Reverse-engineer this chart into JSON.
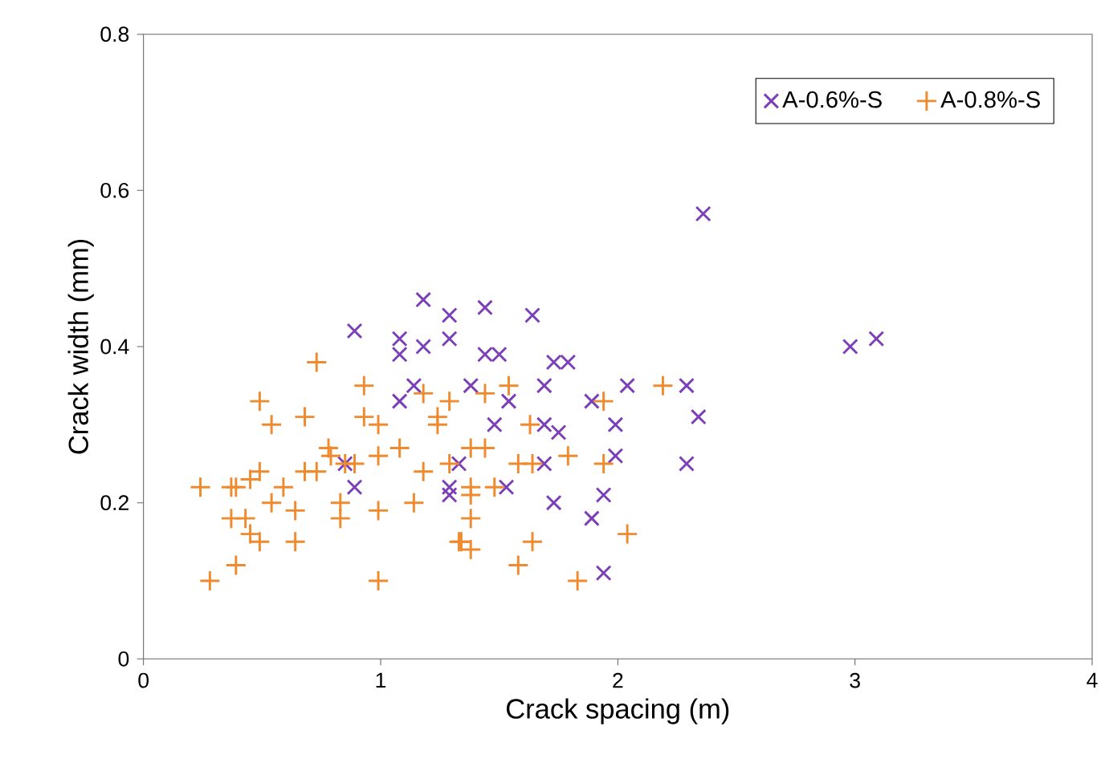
{
  "chart_data": {
    "type": "scatter",
    "xlabel": "Crack spacing (m)",
    "ylabel": "Crack width (mm)",
    "xlim": [
      0,
      4
    ],
    "ylim": [
      0,
      0.8
    ],
    "xticks": [
      0,
      1,
      2,
      3,
      4
    ],
    "yticks": [
      0,
      0.2,
      0.4,
      0.6,
      0.8
    ],
    "legend": "top right",
    "grid": false,
    "series": [
      {
        "name": "A-0.6%-S",
        "color": "#7b3fb8",
        "marker": "cross",
        "x": [
          0.89,
          0.89,
          0.85,
          1.18,
          1.08,
          1.08,
          1.18,
          1.29,
          1.29,
          1.14,
          1.08,
          1.29,
          1.29,
          1.33,
          1.44,
          1.64,
          1.44,
          1.5,
          1.73,
          1.79,
          1.38,
          1.69,
          2.04,
          2.29,
          1.54,
          1.89,
          2.34,
          1.48,
          1.69,
          1.75,
          1.99,
          1.99,
          1.69,
          2.29,
          1.53,
          1.73,
          1.94,
          1.89,
          1.94,
          2.36,
          2.98,
          3.09
        ],
        "values": [
          0.42,
          0.22,
          0.25,
          0.46,
          0.41,
          0.39,
          0.4,
          0.44,
          0.41,
          0.35,
          0.33,
          0.22,
          0.21,
          0.25,
          0.45,
          0.44,
          0.39,
          0.39,
          0.38,
          0.38,
          0.35,
          0.35,
          0.35,
          0.35,
          0.33,
          0.33,
          0.31,
          0.3,
          0.3,
          0.29,
          0.3,
          0.26,
          0.25,
          0.25,
          0.22,
          0.2,
          0.21,
          0.18,
          0.11,
          0.57,
          0.4,
          0.41
        ]
      },
      {
        "name": "A-0.8%-S",
        "color": "#f08a2e",
        "marker": "plus",
        "x": [
          0.24,
          0.37,
          0.39,
          0.45,
          0.49,
          0.37,
          0.43,
          0.45,
          0.49,
          0.39,
          0.28,
          0.54,
          0.59,
          0.64,
          0.64,
          0.49,
          0.54,
          0.68,
          0.73,
          0.68,
          0.73,
          0.78,
          0.79,
          0.85,
          0.89,
          0.83,
          0.83,
          0.93,
          0.93,
          0.99,
          0.99,
          0.99,
          0.99,
          1.08,
          1.14,
          1.18,
          1.24,
          1.24,
          1.29,
          1.29,
          1.18,
          1.33,
          1.44,
          1.54,
          1.38,
          1.44,
          1.63,
          1.58,
          1.64,
          1.79,
          1.94,
          1.94,
          2.19,
          1.38,
          1.38,
          1.48,
          1.38,
          1.34,
          1.38,
          1.64,
          1.58,
          1.83,
          2.04
        ],
        "values": [
          0.22,
          0.22,
          0.22,
          0.23,
          0.24,
          0.18,
          0.18,
          0.16,
          0.15,
          0.12,
          0.1,
          0.2,
          0.22,
          0.19,
          0.15,
          0.33,
          0.3,
          0.31,
          0.38,
          0.24,
          0.24,
          0.27,
          0.26,
          0.25,
          0.25,
          0.2,
          0.18,
          0.35,
          0.31,
          0.3,
          0.26,
          0.19,
          0.1,
          0.27,
          0.2,
          0.34,
          0.31,
          0.3,
          0.33,
          0.25,
          0.24,
          0.15,
          0.34,
          0.35,
          0.27,
          0.27,
          0.3,
          0.25,
          0.25,
          0.26,
          0.33,
          0.25,
          0.35,
          0.22,
          0.21,
          0.22,
          0.18,
          0.15,
          0.14,
          0.15,
          0.12,
          0.1,
          0.16
        ]
      }
    ]
  }
}
